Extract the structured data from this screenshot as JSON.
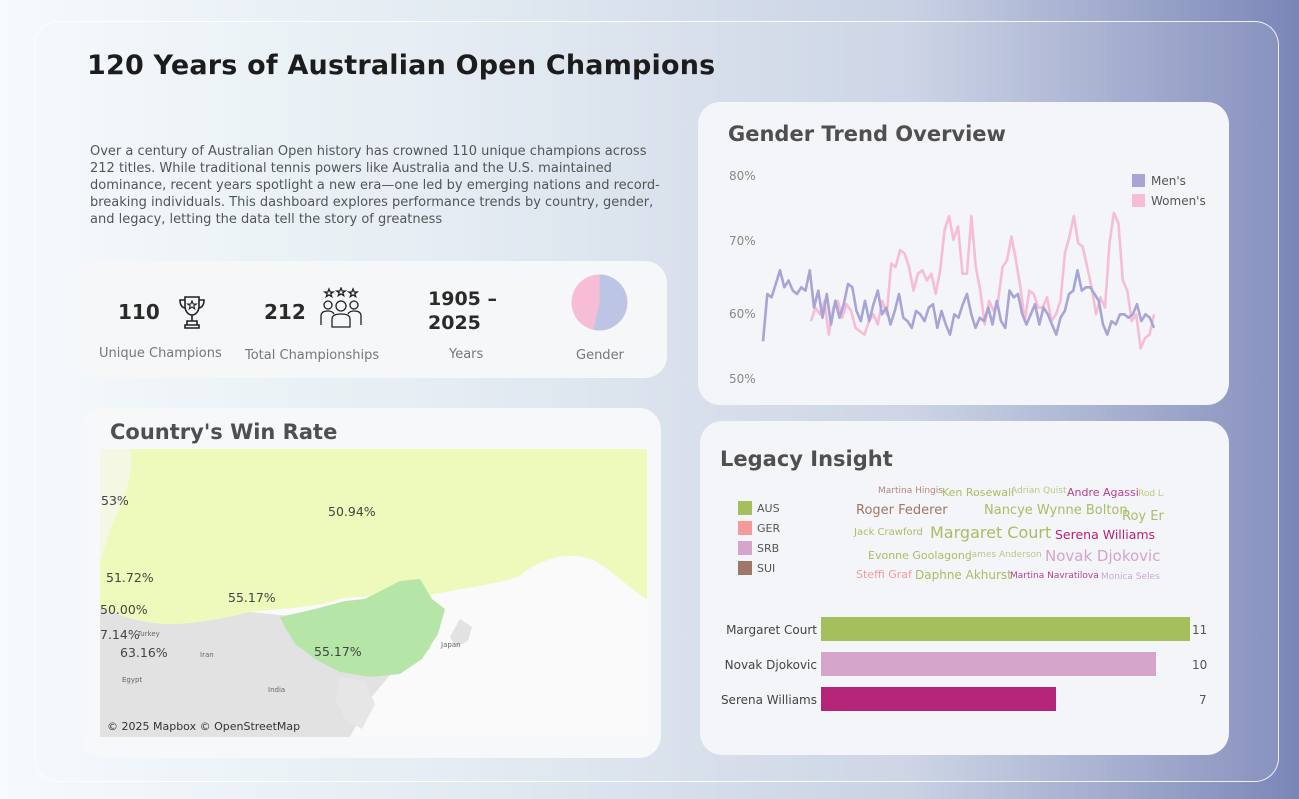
{
  "page": {
    "title": "120 Years of Australian Open Champions",
    "intro": "Over a century of Australian Open history has crowned 110 unique champions across 212 titles. While traditional tennis powers like Australia and the U.S. maintained dominance, recent years spotlight a new era—one led by emerging nations and record-breaking individuals. This dashboard explores performance trends by country, gender, and legacy, letting the data tell the story of greatness"
  },
  "kpis": {
    "champions_value": "110",
    "champions_label": "Unique Champions",
    "championships_value": "212",
    "championships_label": "Total Championships",
    "years_value_line1": "1905 –",
    "years_value_line2": "2025",
    "years_label": "Years",
    "gender_label": "Gender",
    "trophy_icon": "trophy-icon",
    "team_icon": "team-stars-icon"
  },
  "map": {
    "title": "Country's Win Rate",
    "labels": {
      "l1": "53%",
      "l2": "50.94%",
      "l3": "51.72%",
      "l4": "55.17%",
      "l5": "50.00%",
      "l6": "7.14%",
      "l7": "63.16%",
      "l8": "55.17%"
    },
    "places": {
      "turkey": "Turkey",
      "iran": "Iran",
      "egypt": "Egypt",
      "india": "India",
      "japan": "Japan"
    },
    "credit": "© 2025 Mapbox © OpenStreetMap",
    "colors": {
      "russia": "#eefabb",
      "china": "#b5e6a8",
      "land": "#e2e2e2"
    }
  },
  "trend": {
    "title": "Gender Trend Overview",
    "legend": {
      "men": "Men's",
      "women": "Women's"
    },
    "colors": {
      "men": "#a7a4d6",
      "women": "#f7bdd4"
    },
    "chart_data": {
      "type": "line",
      "title": "Gender Trend Overview",
      "ylabel": "",
      "ylim": [
        50,
        80
      ],
      "yticks": [
        "80%",
        "70%",
        "60%",
        "50%"
      ],
      "series": [
        {
          "name": "Men's",
          "values": [
            56,
            63,
            62.5,
            64.5,
            66.5,
            64,
            65,
            63.5,
            63,
            64,
            63.5,
            66.5,
            61,
            63.5,
            59.5,
            63,
            58.5,
            62,
            59.5,
            61.5,
            64.5,
            64,
            60.5,
            59,
            62,
            59,
            61.5,
            63.5,
            60,
            61,
            58.5,
            60.5,
            63,
            59.5,
            59,
            58,
            60.5,
            60,
            59,
            61,
            61.5,
            58,
            60.5,
            58.5,
            57,
            60,
            59.5,
            61.5,
            63,
            60,
            58,
            59.5,
            59,
            61,
            58.5,
            62,
            59,
            58,
            63.5,
            62.5,
            63,
            60,
            58.5,
            60,
            61.5,
            58.5,
            61,
            60,
            58.5,
            57,
            59.5,
            60.5,
            63,
            63.5,
            66.5,
            63.5,
            64,
            64,
            63,
            62,
            58.5,
            57,
            59,
            58.5,
            60,
            60,
            59.5,
            60,
            61.5,
            59,
            60,
            59.5,
            58
          ]
        },
        {
          "name": "Women's",
          "values": [
            59,
            61,
            60,
            62,
            57,
            61,
            62,
            59.5,
            61.5,
            60.5,
            58,
            57.5,
            57,
            59,
            60,
            58.5,
            62,
            60,
            67.5,
            67,
            69.5,
            69,
            67,
            63.5,
            66,
            66.5,
            65,
            66,
            63,
            66.5,
            72.5,
            74.5,
            71,
            73,
            66,
            66,
            74.5,
            67,
            63.5,
            58.5,
            62,
            60.5,
            62,
            67,
            68,
            71.5,
            68,
            64,
            59,
            63.5,
            63,
            61,
            61,
            62.5,
            59,
            60,
            62,
            69,
            71.5,
            74.5,
            70.5,
            70,
            67,
            64,
            60,
            62.5,
            61,
            70.5,
            75,
            73.5,
            65,
            63.5,
            59,
            60,
            55,
            56.5,
            57,
            60
          ]
        }
      ]
    }
  },
  "legacy": {
    "title": "Legacy Insight",
    "country_legend": [
      {
        "code": "AUS",
        "color": "#a4bf5b"
      },
      {
        "code": "GER",
        "color": "#f59a9a"
      },
      {
        "code": "SRB",
        "color": "#d6a5cc"
      },
      {
        "code": "SUI",
        "color": "#a07764"
      }
    ],
    "words": [
      {
        "text": "Martina Hingis",
        "color": "#b5867a",
        "size": 9
      },
      {
        "text": "Ken Rosewall",
        "color": "#a8be62",
        "size": 11
      },
      {
        "text": "Adrian Quist",
        "color": "#b8cb83",
        "size": 9
      },
      {
        "text": "Andre Agassi",
        "color": "#b43f90",
        "size": 11
      },
      {
        "text": "Rod La",
        "color": "#b7cd7c",
        "size": 9
      },
      {
        "text": "Roger Federer",
        "color": "#a07764",
        "size": 13
      },
      {
        "text": "Nancye Wynne Bolton",
        "color": "#a8be62",
        "size": 13
      },
      {
        "text": "Roy Em",
        "color": "#a8be62",
        "size": 13
      },
      {
        "text": "Jack Crawford",
        "color": "#a8be62",
        "size": 10
      },
      {
        "text": "Margaret Court",
        "color": "#a8be62",
        "size": 16
      },
      {
        "text": "Serena Williams",
        "color": "#b5217a",
        "size": 12.5
      },
      {
        "text": "Evonne Goolagong",
        "color": "#a8be62",
        "size": 11
      },
      {
        "text": "James Anderson",
        "color": "#b8cb83",
        "size": 9
      },
      {
        "text": "Novak Djokovic",
        "color": "#d4a5cc",
        "size": 15
      },
      {
        "text": "Steffi Graf",
        "color": "#f59a9a",
        "size": 11
      },
      {
        "text": "Daphne Akhurst",
        "color": "#a8be62",
        "size": 12
      },
      {
        "text": "Martina Navratilova",
        "color": "#b43f90",
        "size": 9
      },
      {
        "text": "Monica Seles",
        "color": "#c7a8e0",
        "size": 9
      }
    ],
    "chart_data": {
      "type": "bar",
      "categories": [
        "Margaret Court",
        "Novak Djokovic",
        "Serena Williams"
      ],
      "values": [
        11,
        10,
        7
      ],
      "colors": [
        "#a4bf5b",
        "#d6a5cc",
        "#b5267b"
      ],
      "xlim": [
        0,
        11
      ]
    }
  }
}
